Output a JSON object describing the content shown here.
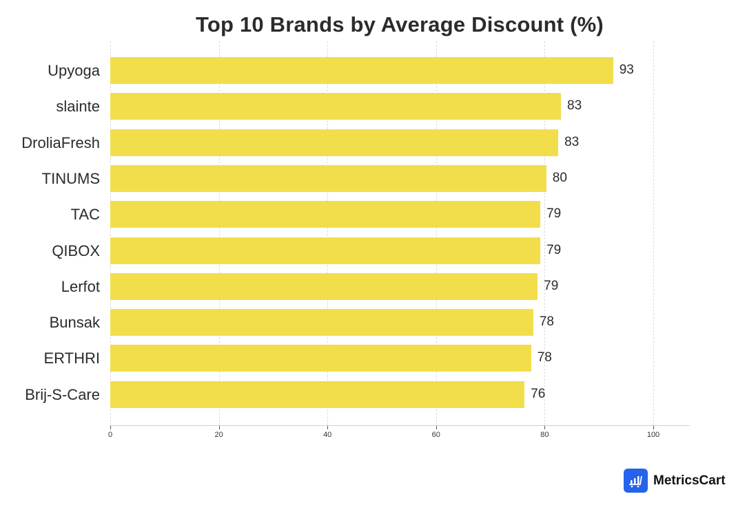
{
  "chart_data": {
    "type": "bar",
    "orientation": "horizontal",
    "title": "Top 10 Brands by Average Discount (%)",
    "xlabel": "",
    "ylabel": "",
    "categories": [
      "Upyoga",
      "slainte",
      "DroliaFresh",
      "TINUMS",
      "TAC",
      "QIBOX",
      "Lerfot",
      "Bunsak",
      "ERTHRI",
      "Brij-S-Care"
    ],
    "values": [
      92.6,
      83.0,
      82.5,
      80.3,
      79.2,
      79.2,
      78.7,
      77.9,
      77.5,
      76.3
    ],
    "value_labels": [
      "93",
      "83",
      "83",
      "80",
      "79",
      "79",
      "79",
      "78",
      "78",
      "76"
    ],
    "xlim": [
      0,
      107
    ],
    "xticks": [
      0,
      20,
      40,
      60,
      80,
      100
    ],
    "grid": "vertical dashed",
    "legend": null,
    "bar_color": "#f2de4b"
  },
  "branding": {
    "logo_text": "MetricsCart",
    "logo_color": "#2563eb"
  }
}
